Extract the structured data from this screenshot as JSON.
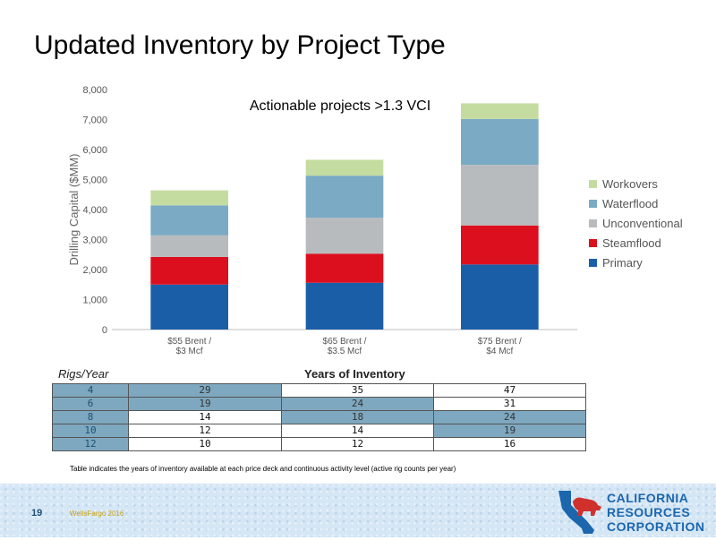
{
  "slide": {
    "title": "Updated Inventory by Project Type"
  },
  "chart_data": {
    "type": "bar",
    "stacked": true,
    "annotation": "Actionable projects >1.3 VCI",
    "ylabel": "Drilling Capital ($MM)",
    "ylim": [
      0,
      8000
    ],
    "yticks": [
      "0",
      "1,000",
      "2,000",
      "3,000",
      "4,000",
      "5,000",
      "6,000",
      "7,000",
      "8,000"
    ],
    "grid": false,
    "legend_position": "right",
    "categories": [
      [
        "$55 Brent /",
        "$3 Mcf"
      ],
      [
        "$65 Brent /",
        "$3.5 Mcf"
      ],
      [
        "$75 Brent /",
        "$4 Mcf"
      ]
    ],
    "series": [
      {
        "name": "Primary",
        "color": "#1a5ea8",
        "values": [
          1500,
          1560,
          2170
        ]
      },
      {
        "name": "Steamflood",
        "color": "#dc0f1e",
        "values": [
          920,
          970,
          1300
        ]
      },
      {
        "name": "Unconventional",
        "color": "#b8bbbe",
        "values": [
          720,
          1200,
          2020
        ]
      },
      {
        "name": "Waterflood",
        "color": "#7aaac4",
        "values": [
          1000,
          1400,
          1530
        ]
      },
      {
        "name": "Workovers",
        "color": "#c5dca0",
        "values": [
          500,
          530,
          520
        ]
      }
    ]
  },
  "table": {
    "rigs_label": "Rigs/Year",
    "header": "Years of Inventory",
    "rows": [
      {
        "rig": "4",
        "values": [
          "29",
          "35",
          "47"
        ],
        "highlight": [
          true,
          false,
          false
        ]
      },
      {
        "rig": "6",
        "values": [
          "19",
          "24",
          "31"
        ],
        "highlight": [
          true,
          true,
          false
        ]
      },
      {
        "rig": "8",
        "values": [
          "14",
          "18",
          "24"
        ],
        "highlight": [
          false,
          true,
          true
        ]
      },
      {
        "rig": "10",
        "values": [
          "12",
          "14",
          "19"
        ],
        "highlight": [
          false,
          false,
          true
        ]
      },
      {
        "rig": "12",
        "values": [
          "10",
          "12",
          "16"
        ],
        "highlight": [
          false,
          false,
          false
        ]
      }
    ],
    "note": "Table indicates the years of inventory available at each price deck and continuous activity level (active rig counts per year)"
  },
  "footer": {
    "page_number": "19",
    "event": "WellsFargo 2016",
    "logo_lines": [
      "CALIFORNIA",
      "RESOURCES",
      "CORPORATION"
    ],
    "logo_colors": {
      "text": "#1b66ad",
      "state": "#1b66ad",
      "bear": "#d0312d"
    }
  }
}
